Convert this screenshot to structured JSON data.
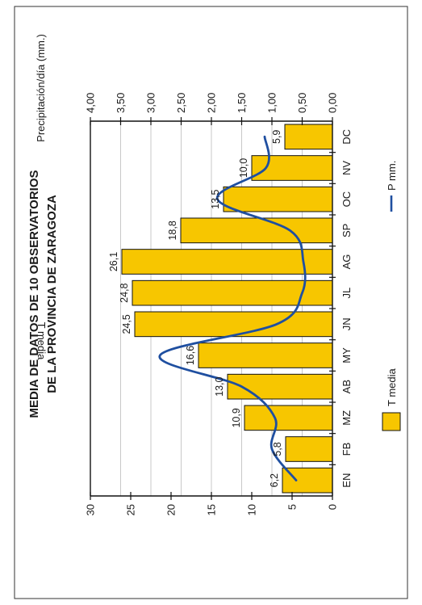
{
  "chart_data": {
    "type": "bar",
    "orientation": "rotated-90",
    "title_lines": [
      "MEDIA DE DATOS DE 10 OBSERVATORIOS",
      "DE LA PROVINCIA DE ZARAGOZA"
    ],
    "categories": [
      "EN",
      "FB",
      "MZ",
      "AB",
      "MY",
      "JN",
      "JL",
      "AG",
      "SP",
      "OC",
      "NV",
      "DC"
    ],
    "ylabel_left": "T media",
    "ylabel_right": "Precipitación/día (mm.)",
    "ylim_left": [
      0,
      30
    ],
    "ylim_right": [
      0,
      4
    ],
    "yticks_left": [
      "0",
      "5",
      "10",
      "15",
      "20",
      "25",
      "30"
    ],
    "yticks_right": [
      "0,00",
      "0,50",
      "1,00",
      "1,50",
      "2,00",
      "2,50",
      "3,00",
      "3,50",
      "4,00"
    ],
    "series": [
      {
        "name": "T media",
        "type": "bar",
        "axis": "left",
        "color": "#f7c600",
        "values": [
          6.2,
          5.8,
          10.9,
          13.0,
          16.6,
          24.5,
          24.8,
          26.1,
          18.8,
          13.5,
          10.0,
          5.9
        ],
        "labels": [
          "6,2",
          "5,8",
          "10,9",
          "13,0",
          "16,6",
          "24,5",
          "24,8",
          "26,1",
          "18,8",
          "13,5",
          "10,0",
          "5,9"
        ]
      },
      {
        "name": "P mm.",
        "type": "line",
        "axis": "right",
        "color": "#1f4fa0",
        "values": [
          0.6,
          1.0,
          0.95,
          1.5,
          2.85,
          0.92,
          0.5,
          0.48,
          0.7,
          1.9,
          1.1,
          1.12
        ]
      }
    ],
    "grid": true,
    "legend": [
      "T media",
      "P mm."
    ],
    "legend_placement": "bottom"
  }
}
